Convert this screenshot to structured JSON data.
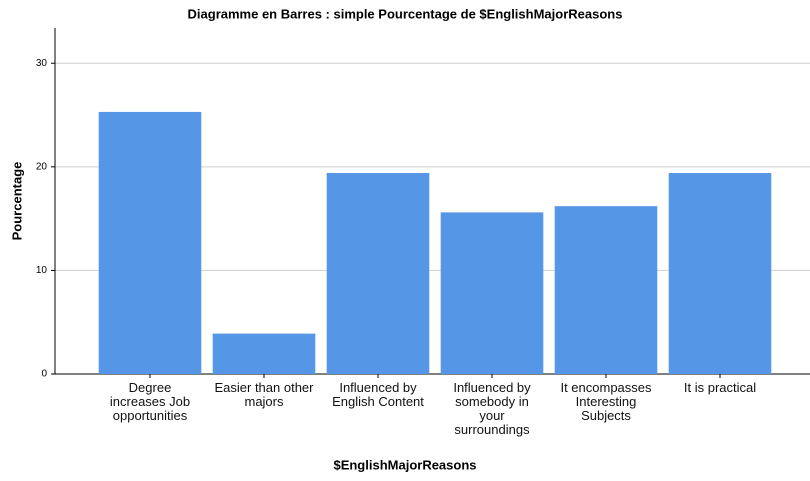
{
  "chart_data": {
    "type": "bar",
    "title": "Diagramme en Barres : simple Pourcentage de $EnglishMajorReasons",
    "x_label": "$EnglishMajorReasons",
    "y_label": "Pourcentage",
    "categories": [
      "Degree increases Job opportunities",
      "Easier than other majors",
      "Influenced by English Content",
      "Influenced by somebody in your surroundings",
      "It encompasses Interesting Subjects",
      "It is practical"
    ],
    "values": [
      25.3,
      3.9,
      19.4,
      15.6,
      16.2,
      19.4
    ],
    "color": "#5596e6",
    "ylim": [
      0,
      33.4
    ],
    "yticks": [
      0,
      10,
      20,
      30
    ],
    "grid": true
  }
}
